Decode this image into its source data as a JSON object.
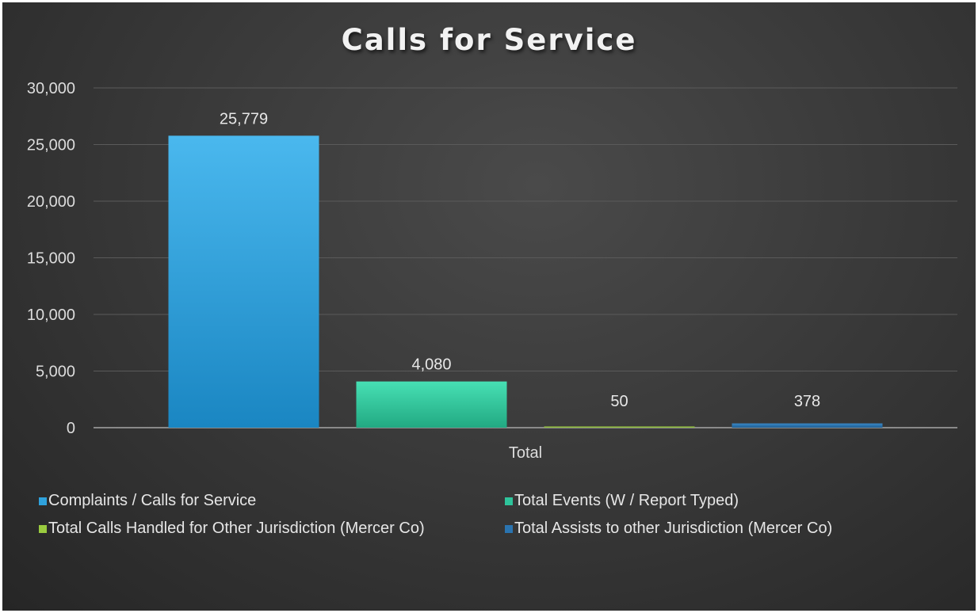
{
  "chart_data": {
    "type": "bar",
    "title": "Calls for Service",
    "categories": [
      "Total"
    ],
    "series": [
      {
        "name": "Complaints / Calls for Service",
        "values": [
          25779
        ],
        "label": "25,779",
        "color": "#2fa2dd"
      },
      {
        "name": "Total Events (W / Report Typed)",
        "values": [
          4080
        ],
        "label": "4,080",
        "color": "#2ec49b"
      },
      {
        "name": "Total Calls Handled for Other Jurisdiction (Mercer Co)",
        "values": [
          50
        ],
        "label": "50",
        "color": "#9acb3f"
      },
      {
        "name": "Total Assists to other Jurisdiction (Mercer Co)",
        "values": [
          378
        ],
        "label": "378",
        "color": "#2a74b0"
      }
    ],
    "ylim": [
      0,
      30000
    ],
    "yticks": [
      "0",
      "5,000",
      "10,000",
      "15,000",
      "20,000",
      "25,000",
      "30,000"
    ],
    "xlabel": "",
    "ylabel": "",
    "grid": true,
    "legend_position": "bottom"
  }
}
